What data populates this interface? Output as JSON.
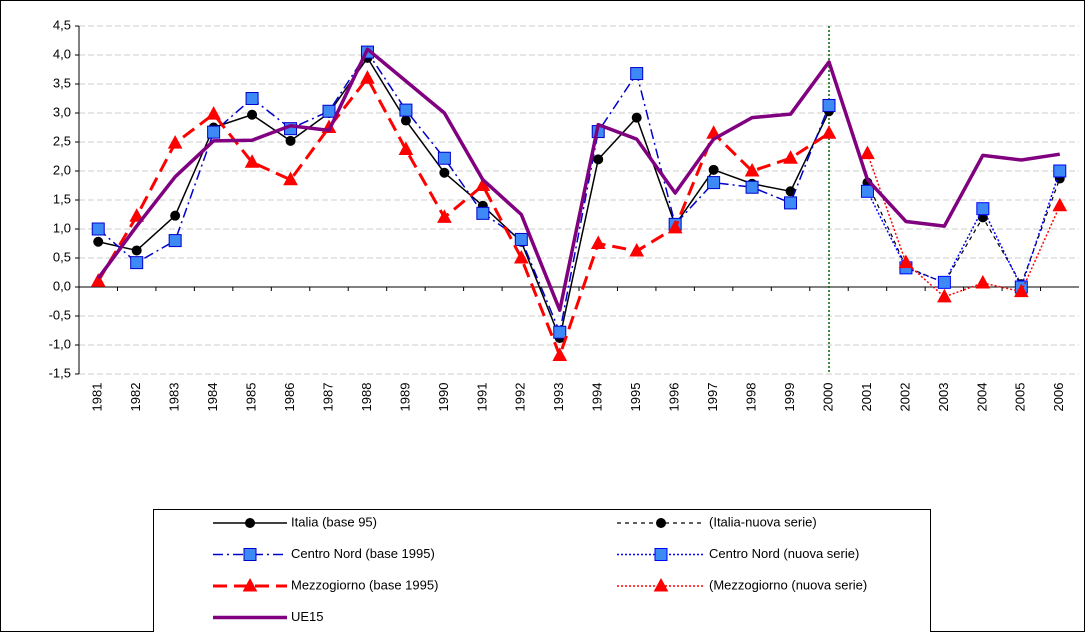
{
  "chart_data": {
    "type": "line",
    "categories": [
      "1981",
      "1982",
      "1983",
      "1984",
      "1985",
      "1986",
      "1987",
      "1988",
      "1989",
      "1990",
      "1991",
      "1992",
      "1993",
      "1994",
      "1995",
      "1996",
      "1997",
      "1998",
      "1999",
      "2000",
      "2001",
      "2002",
      "2003",
      "2004",
      "2005",
      "2006"
    ],
    "series": [
      {
        "name": "Italia (base 95)",
        "color": "#000000",
        "line_style": "solid",
        "marker": "circle",
        "marker_color": "#000000",
        "values": [
          0.78,
          0.63,
          1.23,
          2.75,
          2.97,
          2.52,
          3.0,
          3.95,
          2.87,
          1.97,
          1.4,
          0.78,
          -0.88,
          2.2,
          2.92,
          1.07,
          2.02,
          1.78,
          1.65,
          3.03,
          null,
          null,
          null,
          null,
          null,
          null
        ]
      },
      {
        "name": "(Italia-nuova serie)",
        "color": "#000000",
        "line_style": "dashed",
        "marker": "circle",
        "marker_color": "#000000",
        "values": [
          null,
          null,
          null,
          null,
          null,
          null,
          null,
          null,
          null,
          null,
          null,
          null,
          null,
          null,
          null,
          null,
          null,
          null,
          null,
          null,
          1.8,
          0.35,
          0.07,
          1.2,
          0.05,
          1.87
        ]
      },
      {
        "name": "Centro Nord (base 1995)",
        "color": "#0000cc",
        "line_style": "dash-dot",
        "marker": "square",
        "marker_color": "#3d8af7",
        "values": [
          1.0,
          0.42,
          0.8,
          2.67,
          3.25,
          2.73,
          3.03,
          4.05,
          3.05,
          2.22,
          1.27,
          0.82,
          -0.78,
          2.68,
          3.68,
          1.08,
          1.8,
          1.72,
          1.45,
          3.13,
          null,
          null,
          null,
          null,
          null,
          null
        ]
      },
      {
        "name": "Centro Nord (nuova serie)",
        "color": "#0000ff",
        "line_style": "dotted",
        "marker": "square",
        "marker_color": "#3d8af7",
        "values": [
          null,
          null,
          null,
          null,
          null,
          null,
          null,
          null,
          null,
          null,
          null,
          null,
          null,
          null,
          null,
          null,
          null,
          null,
          null,
          null,
          1.65,
          0.33,
          0.08,
          1.35,
          0.0,
          2.0
        ]
      },
      {
        "name": "Mezzogiorno (base 1995)",
        "color": "#ff0000",
        "line_style": "long-dash",
        "marker": "triangle",
        "marker_color": "#ff0000",
        "values": [
          0.1,
          1.22,
          2.48,
          2.98,
          2.15,
          1.85,
          2.75,
          3.6,
          2.37,
          1.2,
          1.75,
          0.5,
          -1.18,
          0.75,
          0.62,
          1.02,
          2.65,
          2.0,
          2.22,
          2.65,
          null,
          null,
          null,
          null,
          null,
          null
        ]
      },
      {
        "name": "(Mezzogiorno (nuova serie)",
        "color": "#ff0000",
        "line_style": "dotted",
        "marker": "triangle",
        "marker_color": "#ff0000",
        "values": [
          null,
          null,
          null,
          null,
          null,
          null,
          null,
          null,
          null,
          null,
          null,
          null,
          null,
          null,
          null,
          null,
          null,
          null,
          null,
          null,
          2.3,
          0.42,
          -0.17,
          0.07,
          -0.08,
          1.4
        ]
      },
      {
        "name": "UE15",
        "color": "#800080",
        "line_style": "thick",
        "marker": "none",
        "marker_color": "#800080",
        "values": [
          0.15,
          1.05,
          1.9,
          2.52,
          2.53,
          2.78,
          2.7,
          4.1,
          3.55,
          3.0,
          1.85,
          1.25,
          -0.4,
          2.8,
          2.55,
          1.62,
          2.55,
          2.92,
          2.98,
          3.88,
          1.85,
          1.13,
          1.05,
          2.27,
          2.19,
          2.29
        ]
      }
    ],
    "ylim": [
      -1.5,
      4.5
    ],
    "yticks": [
      {
        "value": -1.5,
        "label": "-1,5"
      },
      {
        "value": -1,
        "label": "-1,0"
      },
      {
        "value": -0.5,
        "label": "-0,5"
      },
      {
        "value": 0,
        "label": "0,0"
      },
      {
        "value": 0.5,
        "label": "0,5"
      },
      {
        "value": 1,
        "label": "1,0"
      },
      {
        "value": 1.5,
        "label": "1,5"
      },
      {
        "value": 2,
        "label": "2,0"
      },
      {
        "value": 2.5,
        "label": "2,5"
      },
      {
        "value": 3,
        "label": "3,0"
      },
      {
        "value": 3.5,
        "label": "3,5"
      },
      {
        "value": 4,
        "label": "4,0"
      },
      {
        "value": 4.5,
        "label": "4,5"
      }
    ],
    "grid": true,
    "vline": {
      "category": "2000",
      "color": "#006600"
    },
    "legend": "bottom"
  }
}
